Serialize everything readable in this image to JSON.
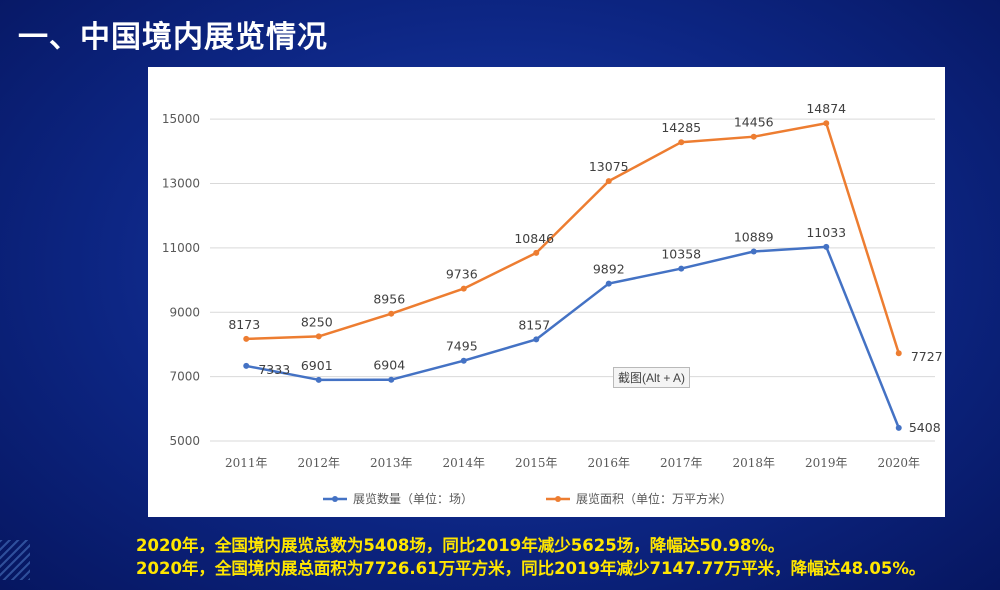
{
  "slide": {
    "title": "一、中国境内展览情况",
    "summary_line1": "2020年，全国境内展览总数为5408场，同比2019年减少5625场，降幅达50.98%。",
    "summary_line2": "2020年，全国境内展总面积为7726.61万平方米，同比2019年减少7147.77万平米，降幅达48.05%。",
    "tooltip": "截图(Alt + A)"
  },
  "colors": {
    "background": "#0d2684",
    "summary_text": "#ffe600",
    "series_count": "#4472c4",
    "series_area": "#ed7d31"
  },
  "chart_data": {
    "type": "line",
    "title": "",
    "xlabel": "",
    "ylabel": "",
    "categories": [
      "2011年",
      "2012年",
      "2013年",
      "2014年",
      "2015年",
      "2016年",
      "2017年",
      "2018年",
      "2019年",
      "2020年"
    ],
    "ylim": [
      5000,
      16000
    ],
    "yticks": [
      5000,
      7000,
      9000,
      11000,
      13000,
      15000
    ],
    "grid": true,
    "legend_position": "bottom",
    "series": [
      {
        "name": "展览数量（单位：场）",
        "color": "#4472c4",
        "values": [
          7333,
          6901,
          6904,
          7495,
          8157,
          9892,
          10358,
          10889,
          11033,
          5408
        ]
      },
      {
        "name": "展览面积（单位：万平方米）",
        "color": "#ed7d31",
        "values": [
          8173,
          8250,
          8956,
          9736,
          10846,
          13075,
          14285,
          14456,
          14874,
          7727
        ]
      }
    ]
  }
}
